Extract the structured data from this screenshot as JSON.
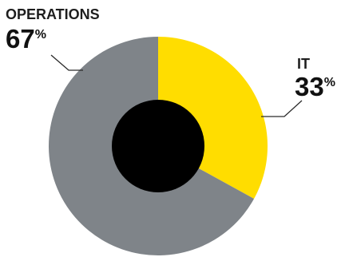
{
  "chart_data": {
    "type": "pie",
    "title": "",
    "legend": "none",
    "series": [
      {
        "name": "OPERATIONS",
        "value": 67,
        "value_label": "67",
        "unit": "%",
        "color": "#7f8489"
      },
      {
        "name": "IT",
        "value": 33,
        "value_label": "33",
        "unit": "%",
        "color": "#ffdd00"
      }
    ],
    "center_color": "#000000"
  }
}
